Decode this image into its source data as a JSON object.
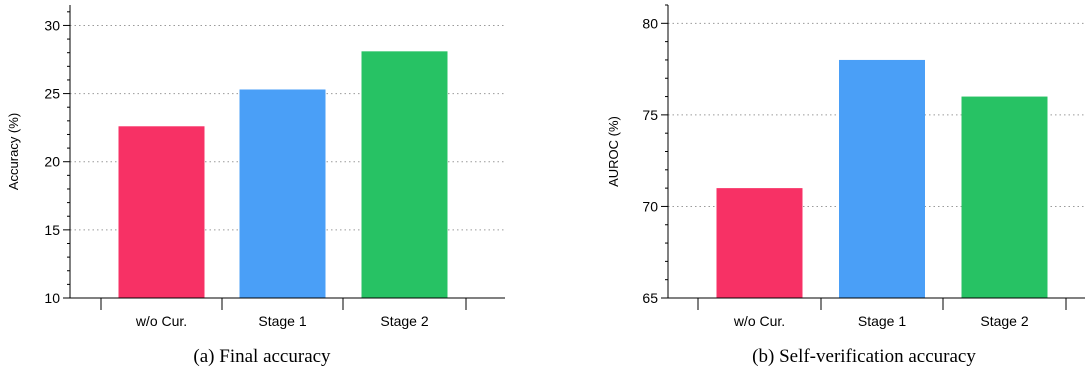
{
  "chart_data": [
    {
      "type": "bar",
      "caption": "(a) Final accuracy",
      "ylabel": "Accuracy (%)",
      "categories": [
        "w/o Cur.",
        "Stage 1",
        "Stage 2"
      ],
      "values": [
        22.6,
        25.3,
        28.1
      ],
      "colors": [
        "#f73165",
        "#4a9ff7",
        "#27c264"
      ],
      "ylim": [
        10,
        31.5
      ],
      "yticks": [
        10,
        15,
        20,
        25,
        30
      ],
      "minor_step": 1,
      "grid": "horizontal dotted"
    },
    {
      "type": "bar",
      "caption": "(b) Self-verification accuracy",
      "ylabel": "AUROC (%)",
      "categories": [
        "w/o Cur.",
        "Stage 1",
        "Stage 2"
      ],
      "values": [
        71.0,
        78.0,
        76.0
      ],
      "colors": [
        "#f73165",
        "#4a9ff7",
        "#27c264"
      ],
      "ylim": [
        65,
        81
      ],
      "yticks": [
        65,
        70,
        75,
        80
      ],
      "minor_step": 1,
      "grid": "horizontal dotted"
    }
  ]
}
